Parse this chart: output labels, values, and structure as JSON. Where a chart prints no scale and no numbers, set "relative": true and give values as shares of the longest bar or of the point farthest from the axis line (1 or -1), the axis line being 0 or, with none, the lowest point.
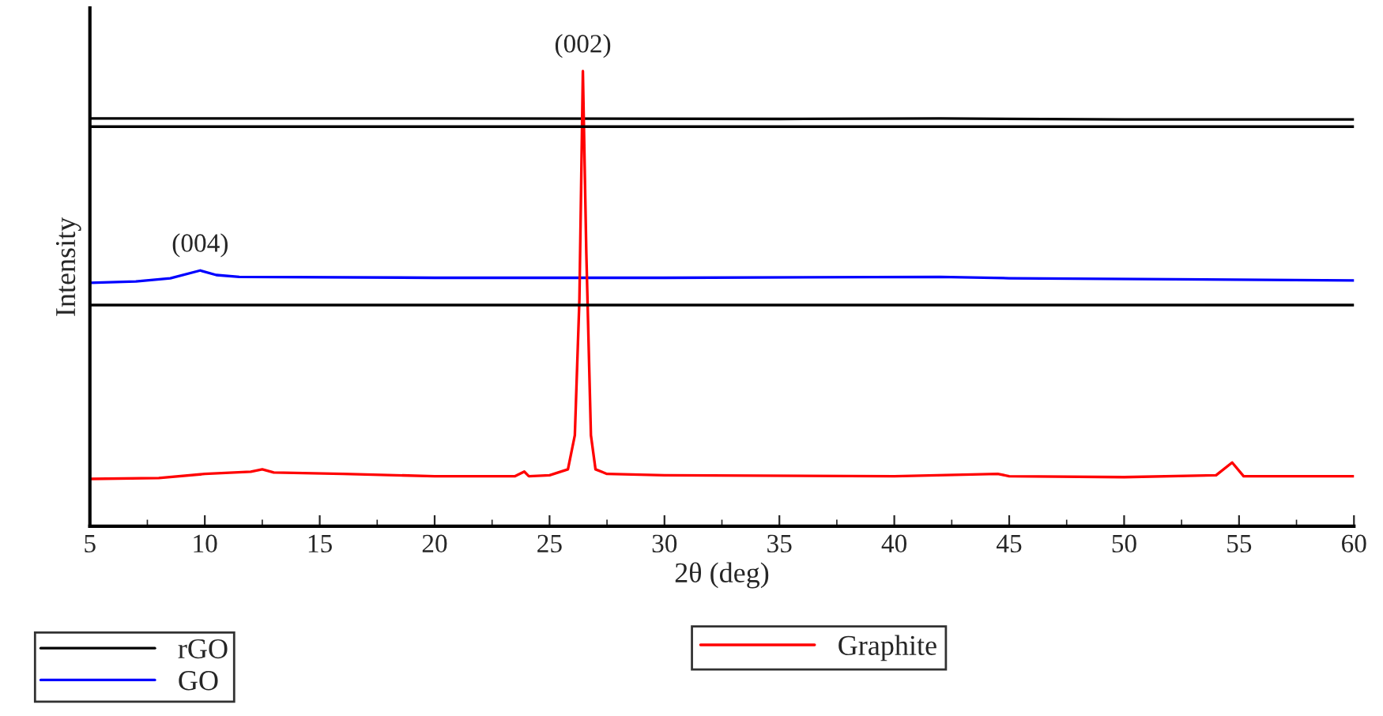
{
  "chart_data": {
    "type": "line",
    "relative": true,
    "xlabel": "2θ (deg)",
    "ylabel": "Intensity",
    "xlim": [
      5,
      60
    ],
    "xticks": [
      5,
      10,
      15,
      20,
      25,
      30,
      35,
      40,
      45,
      50,
      55,
      60
    ],
    "tick_labels": "x",
    "grid": false,
    "legend": "bottom",
    "marker": "none",
    "line_style": "solid",
    "series": [
      {
        "name": "rGO",
        "color": "#000000",
        "x": [
          5,
          20,
          35,
          42,
          50,
          60
        ],
        "values": [
          0.896,
          0.896,
          0.895,
          0.896,
          0.894,
          0.894
        ]
      },
      {
        "name": "GO",
        "color": "#0000ff",
        "x": [
          5,
          7,
          8.5,
          9.8,
          10.5,
          11.5,
          20,
          30,
          42,
          45,
          60
        ],
        "values": [
          0.535,
          0.538,
          0.545,
          0.562,
          0.552,
          0.548,
          0.546,
          0.546,
          0.548,
          0.545,
          0.54
        ]
      },
      {
        "name": "Graphite",
        "color": "#ff0000",
        "x": [
          5,
          8,
          10,
          12,
          12.5,
          13,
          16,
          20,
          23.5,
          23.9,
          24.1,
          25,
          25.8,
          26.1,
          26.3,
          26.45,
          26.6,
          26.8,
          27.0,
          27.5,
          30,
          40,
          44.5,
          45,
          50,
          54,
          54.7,
          55.2,
          60
        ],
        "values": [
          0.104,
          0.106,
          0.115,
          0.12,
          0.125,
          0.118,
          0.115,
          0.11,
          0.11,
          0.12,
          0.11,
          0.112,
          0.125,
          0.2,
          0.5,
          1.0,
          0.6,
          0.2,
          0.125,
          0.115,
          0.112,
          0.11,
          0.115,
          0.11,
          0.108,
          0.112,
          0.14,
          0.11,
          0.11
        ]
      }
    ],
    "ref_lines": [
      {
        "axis": "y",
        "value": 0.878,
        "label": null,
        "color": "#000000"
      },
      {
        "axis": "y",
        "value": 0.486,
        "label": null,
        "color": "#000000"
      }
    ],
    "annotations": [
      {
        "text": "(004)",
        "x": 9.8,
        "y": 0.562
      },
      {
        "text": "(002)",
        "x": 26.45,
        "y": 1.0
      }
    ]
  }
}
